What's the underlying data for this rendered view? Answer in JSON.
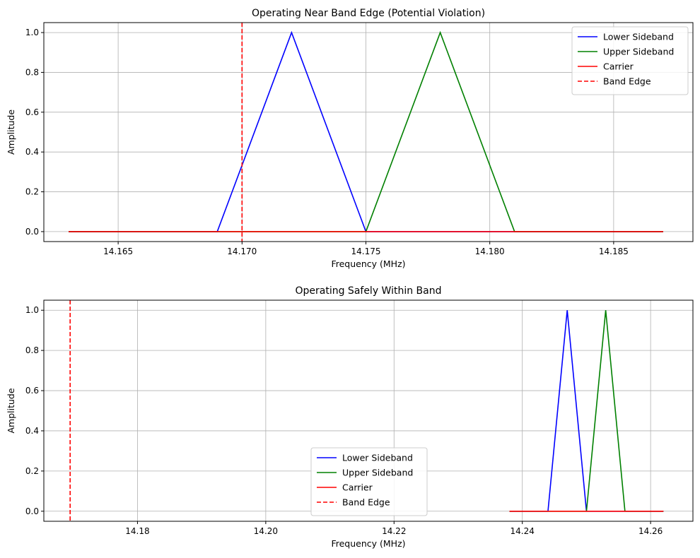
{
  "chart_data": [
    {
      "type": "line",
      "title": "Operating Near Band Edge (Potential Violation)",
      "xlabel": "Frequency (MHz)",
      "ylabel": "Amplitude",
      "xlim": [
        14.162,
        14.1882
      ],
      "ylim": [
        -0.05,
        1.05
      ],
      "xticks": [
        "14.165",
        "14.170",
        "14.175",
        "14.180",
        "14.185"
      ],
      "xtick_values": [
        14.165,
        14.17,
        14.175,
        14.18,
        14.185
      ],
      "yticks": [
        "0.0",
        "0.2",
        "0.4",
        "0.6",
        "0.8",
        "1.0"
      ],
      "ytick_values": [
        0,
        0.2,
        0.4,
        0.6,
        0.8,
        1.0
      ],
      "grid": true,
      "legend_position": "top-right",
      "series": [
        {
          "name": "Lower Sideband",
          "color": "#0000ff",
          "dash": "solid",
          "x": [
            14.163,
            14.169,
            14.172,
            14.175,
            14.187
          ],
          "y": [
            0,
            0,
            1,
            0,
            0
          ]
        },
        {
          "name": "Upper Sideband",
          "color": "#008000",
          "dash": "solid",
          "x": [
            14.163,
            14.175,
            14.178,
            14.181,
            14.187
          ],
          "y": [
            0,
            0,
            1,
            0,
            0
          ]
        },
        {
          "name": "Carrier",
          "color": "#ff0000",
          "dash": "solid",
          "x": [
            14.163,
            14.187
          ],
          "y": [
            0,
            0
          ]
        },
        {
          "name": "Band Edge",
          "color": "#ff0000",
          "dash": "dashed",
          "vline": 14.17
        }
      ]
    },
    {
      "type": "line",
      "title": "Operating Safely Within Band",
      "xlabel": "Frequency (MHz)",
      "ylabel": "Amplitude",
      "xlim": [
        14.1654,
        14.2666
      ],
      "ylim": [
        -0.05,
        1.05
      ],
      "xticks": [
        "14.18",
        "14.20",
        "14.22",
        "14.24",
        "14.26"
      ],
      "xtick_values": [
        14.18,
        14.2,
        14.22,
        14.24,
        14.26
      ],
      "yticks": [
        "0.0",
        "0.2",
        "0.4",
        "0.6",
        "0.8",
        "1.0"
      ],
      "ytick_values": [
        0,
        0.2,
        0.4,
        0.6,
        0.8,
        1.0
      ],
      "grid": true,
      "legend_position": "lower-center",
      "series": [
        {
          "name": "Lower Sideband",
          "color": "#0000ff",
          "dash": "solid",
          "x": [
            14.238,
            14.244,
            14.247,
            14.25,
            14.262
          ],
          "y": [
            0,
            0,
            1,
            0,
            0
          ]
        },
        {
          "name": "Upper Sideband",
          "color": "#008000",
          "dash": "solid",
          "x": [
            14.238,
            14.25,
            14.253,
            14.256,
            14.262
          ],
          "y": [
            0,
            0,
            1,
            0,
            0
          ]
        },
        {
          "name": "Carrier",
          "color": "#ff0000",
          "dash": "solid",
          "x": [
            14.238,
            14.262
          ],
          "y": [
            0,
            0
          ]
        },
        {
          "name": "Band Edge",
          "color": "#ff0000",
          "dash": "dashed",
          "vline": 14.1695
        }
      ]
    }
  ]
}
